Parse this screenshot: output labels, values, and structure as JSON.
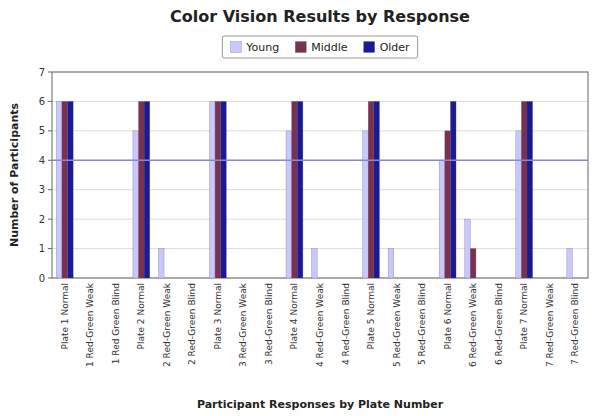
{
  "chart_data": {
    "type": "bar",
    "title": "Color Vision Results by Response",
    "x_label": "Participant Responses by Plate Number",
    "y_label": "Number of Participants",
    "categories": [
      "Plate 1 Normal",
      "1 Red-Green Weak",
      "1 Red Green Blind",
      "Plate 2 Normal",
      "2 Red-Green Weak",
      "2 Red-Green Blind",
      "Plate 3 Normal",
      "3 Red-Green Weak",
      "3 Red-Green Blind",
      "Plate 4 Normal",
      "4 Red-Green Weak",
      "4 Red-Green Blind",
      "Plate 5 Normal",
      "5 Red-Green Weak",
      "5 Red-Green Blind",
      "Plate 6 Normal",
      "6 Red-Green Weak",
      "6 Red-Green Blind",
      "Plate 7 Normal",
      "7 Red-Green Weak",
      "7 Red-Green Blind"
    ],
    "series": [
      {
        "name": "Young",
        "color": "#c8c8ff",
        "values": [
          6,
          0,
          0,
          5,
          1,
          0,
          6,
          0,
          0,
          5,
          1,
          0,
          5,
          1,
          0,
          4,
          2,
          0,
          5,
          0,
          1
        ]
      },
      {
        "name": "Middle",
        "color": "#7a3050",
        "values": [
          6,
          0,
          0,
          6,
          0,
          0,
          6,
          0,
          0,
          6,
          0,
          0,
          6,
          0,
          0,
          5,
          1,
          0,
          6,
          0,
          0
        ]
      },
      {
        "name": "Older",
        "color": "#1a1a99",
        "values": [
          6,
          0,
          0,
          6,
          0,
          0,
          6,
          0,
          0,
          6,
          0,
          0,
          6,
          0,
          0,
          6,
          0,
          0,
          6,
          0,
          0
        ]
      }
    ],
    "reference_lines": [
      {
        "value": 4,
        "color": "#8888cc"
      }
    ],
    "ylim": [
      0,
      7
    ],
    "yticks": [
      0,
      1,
      2,
      3,
      4,
      5,
      6,
      7
    ],
    "grid": true,
    "legend": "top"
  }
}
